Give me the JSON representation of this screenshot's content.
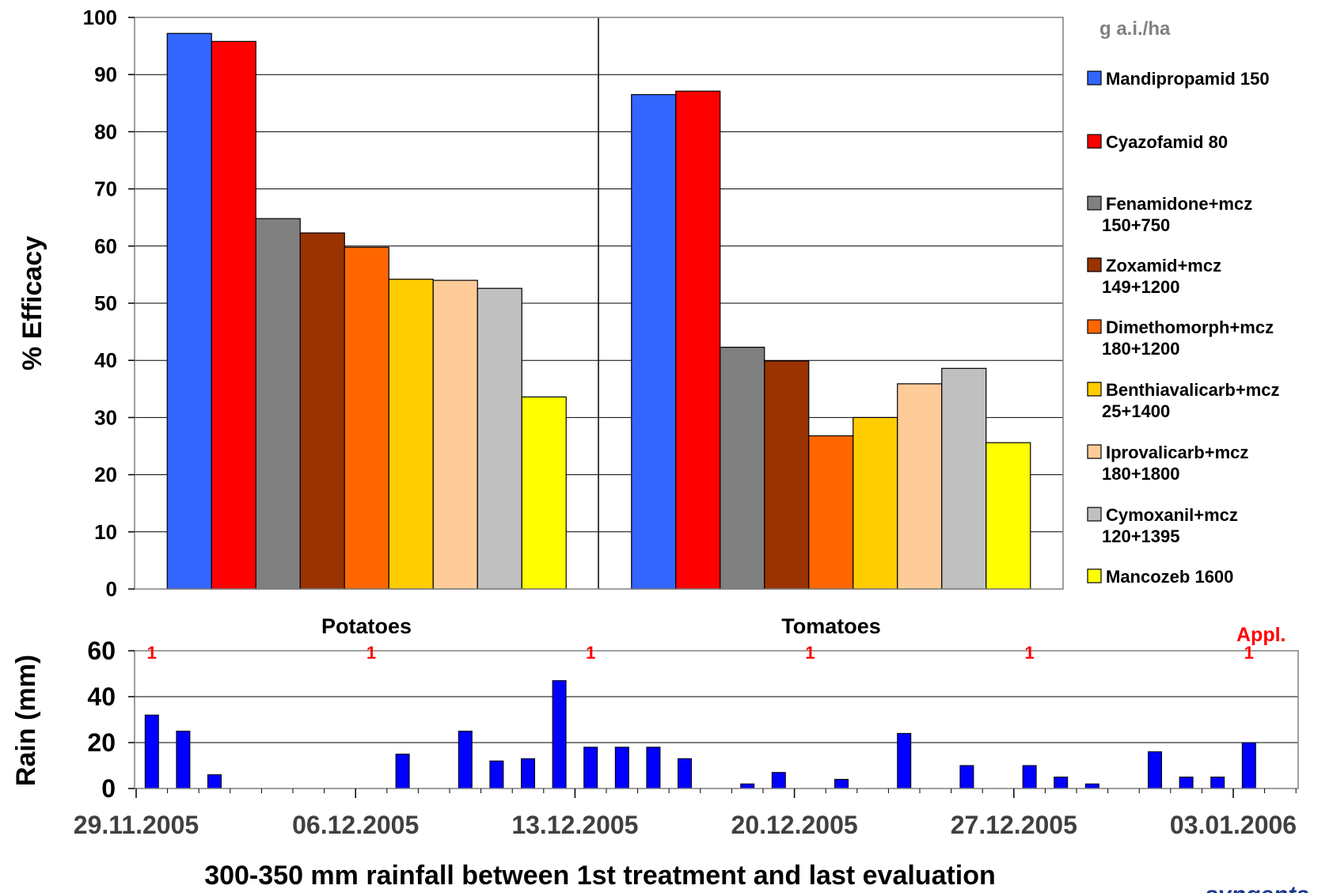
{
  "chart_data": [
    {
      "type": "bar",
      "ylabel": "% Efficacy",
      "ylim": [
        0,
        100
      ],
      "yticks": [
        0,
        10,
        20,
        30,
        40,
        50,
        60,
        70,
        80,
        90,
        100
      ],
      "grid": true,
      "categories": [
        "Potatoes",
        "Tomatoes"
      ],
      "legend_title": "g a.i./ha",
      "legend_position": "right",
      "series": [
        {
          "name": "Mandipropamid 150",
          "name_lines": [
            "Mandipropamid 150"
          ],
          "color": "#3366ff",
          "values": [
            97.2,
            86.5
          ]
        },
        {
          "name": "Cyazofamid 80",
          "name_lines": [
            "Cyazofamid 80"
          ],
          "color": "#ff0000",
          "values": [
            95.8,
            87.1
          ]
        },
        {
          "name": "Fenamidone+mcz 150+750",
          "name_lines": [
            "Fenamidone+mcz",
            "150+750"
          ],
          "color": "#808080",
          "values": [
            64.8,
            42.3
          ]
        },
        {
          "name": "Zoxamid+mcz 149+1200",
          "name_lines": [
            "Zoxamid+mcz",
            "149+1200"
          ],
          "color": "#993300",
          "values": [
            62.3,
            39.9
          ]
        },
        {
          "name": "Dimethomorph+mcz 180+1200",
          "name_lines": [
            "Dimethomorph+mcz",
            "180+1200"
          ],
          "color": "#ff6600",
          "values": [
            59.8,
            26.8
          ]
        },
        {
          "name": "Benthiavalicarb+mcz 25+1400",
          "name_lines": [
            "Benthiavalicarb+mcz",
            "25+1400"
          ],
          "color": "#ffcc00",
          "values": [
            54.2,
            30.0
          ]
        },
        {
          "name": "Iprovalicarb+mcz 180+1800",
          "name_lines": [
            "Iprovalicarb+mcz",
            "180+1800"
          ],
          "color": "#ffcc99",
          "values": [
            54.0,
            35.9
          ]
        },
        {
          "name": "Cymoxanil+mcz 120+1395",
          "name_lines": [
            "Cymoxanil+mcz",
            "120+1395"
          ],
          "color": "#c0c0c0",
          "values": [
            52.6,
            38.6
          ]
        },
        {
          "name": "Mancozeb 1600",
          "name_lines": [
            "Mancozeb 1600"
          ],
          "color": "#ffff00",
          "values": [
            33.6,
            25.6
          ]
        }
      ]
    },
    {
      "type": "bar",
      "ylabel": "Rain (mm)",
      "xlabel": "300-350 mm rainfall between 1st treatment and last evaluation",
      "ylim": [
        0,
        60
      ],
      "yticks": [
        0,
        20,
        40,
        60
      ],
      "grid": true,
      "bar_color": "#0000ff",
      "x_tick_labels": [
        "29.11.2005",
        "06.12.2005",
        "13.12.2005",
        "20.12.2005",
        "27.12.2005",
        "03.01.2006"
      ],
      "rain": [
        {
          "day": 0.5,
          "mm": 32
        },
        {
          "day": 1.5,
          "mm": 25
        },
        {
          "day": 2.5,
          "mm": 6
        },
        {
          "day": 8.5,
          "mm": 15
        },
        {
          "day": 10.5,
          "mm": 25
        },
        {
          "day": 11.5,
          "mm": 12
        },
        {
          "day": 12.5,
          "mm": 13
        },
        {
          "day": 13.5,
          "mm": 47
        },
        {
          "day": 14.5,
          "mm": 18
        },
        {
          "day": 15.5,
          "mm": 18
        },
        {
          "day": 16.5,
          "mm": 18
        },
        {
          "day": 17.5,
          "mm": 13
        },
        {
          "day": 19.5,
          "mm": 2
        },
        {
          "day": 20.5,
          "mm": 7
        },
        {
          "day": 22.5,
          "mm": 4
        },
        {
          "day": 24.5,
          "mm": 24
        },
        {
          "day": 26.5,
          "mm": 10
        },
        {
          "day": 28.5,
          "mm": 10
        },
        {
          "day": 29.5,
          "mm": 5
        },
        {
          "day": 30.5,
          "mm": 2
        },
        {
          "day": 32.5,
          "mm": 16
        },
        {
          "day": 33.5,
          "mm": 5
        },
        {
          "day": 34.5,
          "mm": 5
        },
        {
          "day": 35.5,
          "mm": 20
        }
      ],
      "applications_label": "Appl.",
      "application_marker": "1",
      "application_days": [
        0.5,
        7.5,
        14.5,
        21.5,
        28.5,
        35.5
      ]
    }
  ],
  "logo_text": "syngenta"
}
